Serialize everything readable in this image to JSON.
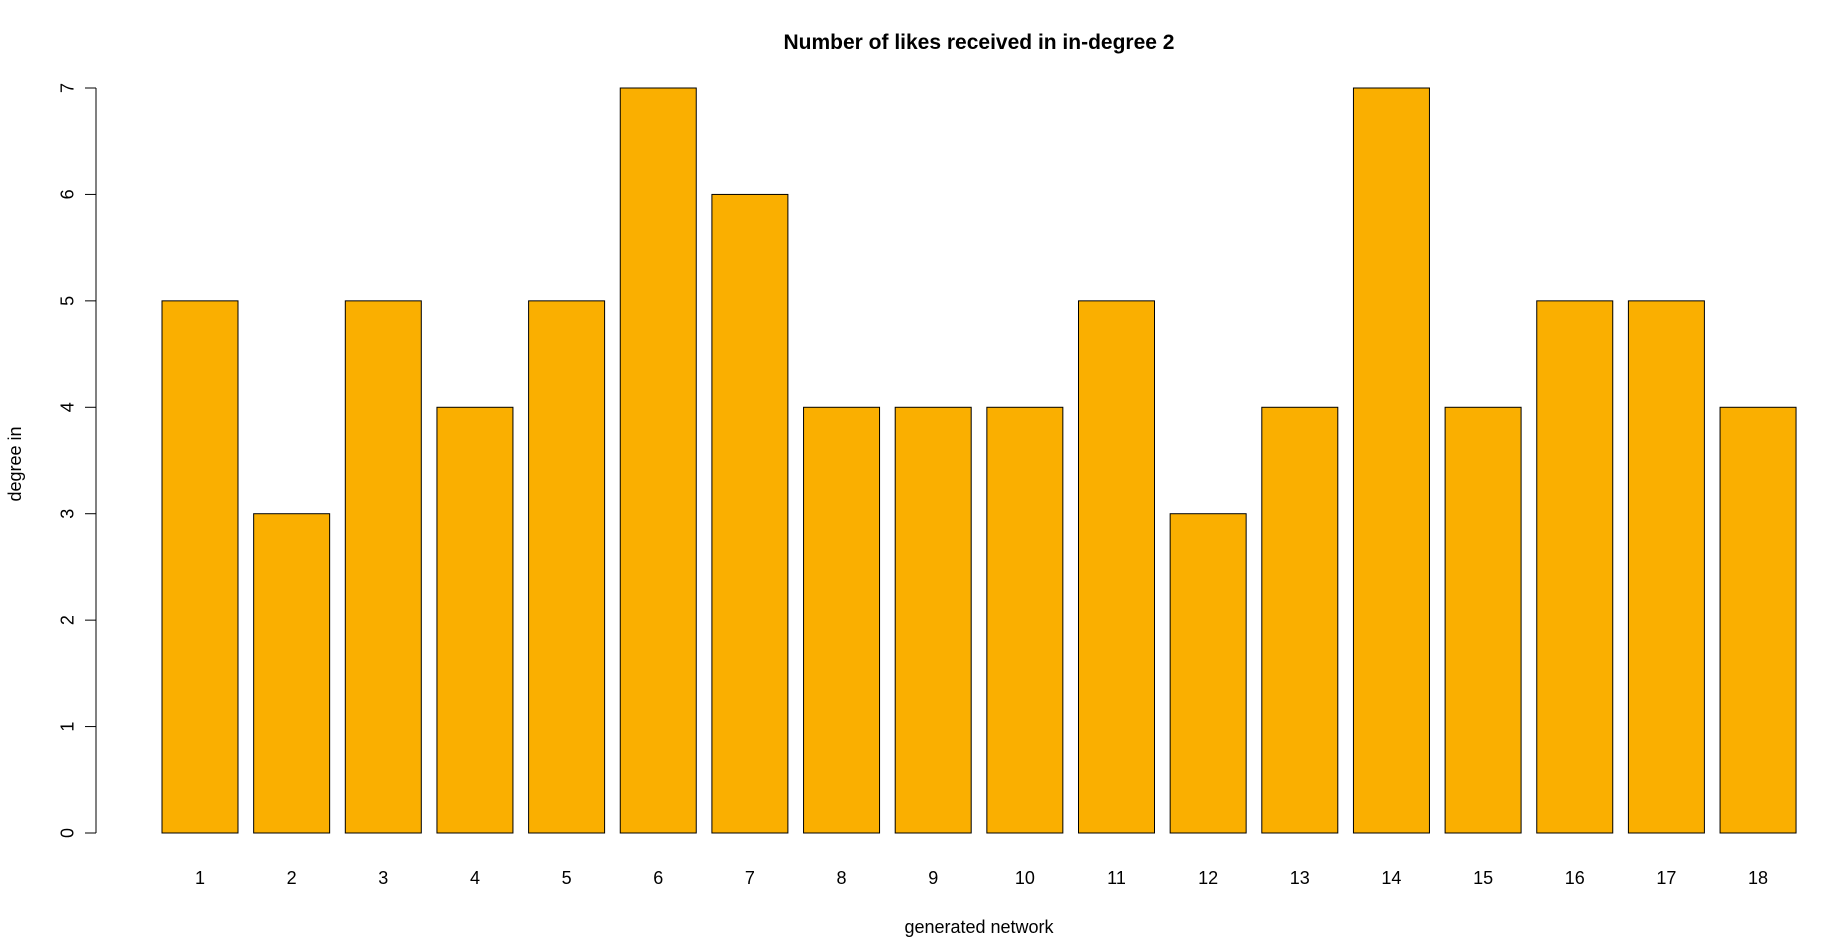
{
  "chart_data": {
    "type": "bar",
    "title": "Number of likes received in in-degree 2",
    "xlabel": "generated network",
    "ylabel": "degree in",
    "categories": [
      "1",
      "2",
      "3",
      "4",
      "5",
      "6",
      "7",
      "8",
      "9",
      "10",
      "11",
      "12",
      "13",
      "14",
      "15",
      "16",
      "17",
      "18"
    ],
    "values": [
      5,
      3,
      5,
      4,
      5,
      7,
      6,
      4,
      4,
      4,
      5,
      3,
      4,
      7,
      4,
      5,
      5,
      4
    ],
    "ylim": [
      0,
      7
    ],
    "yticks": [
      "0",
      "1",
      "2",
      "3",
      "4",
      "5",
      "6",
      "7"
    ],
    "bar_color": "#FAAF00",
    "grid": false,
    "legend": "none"
  }
}
